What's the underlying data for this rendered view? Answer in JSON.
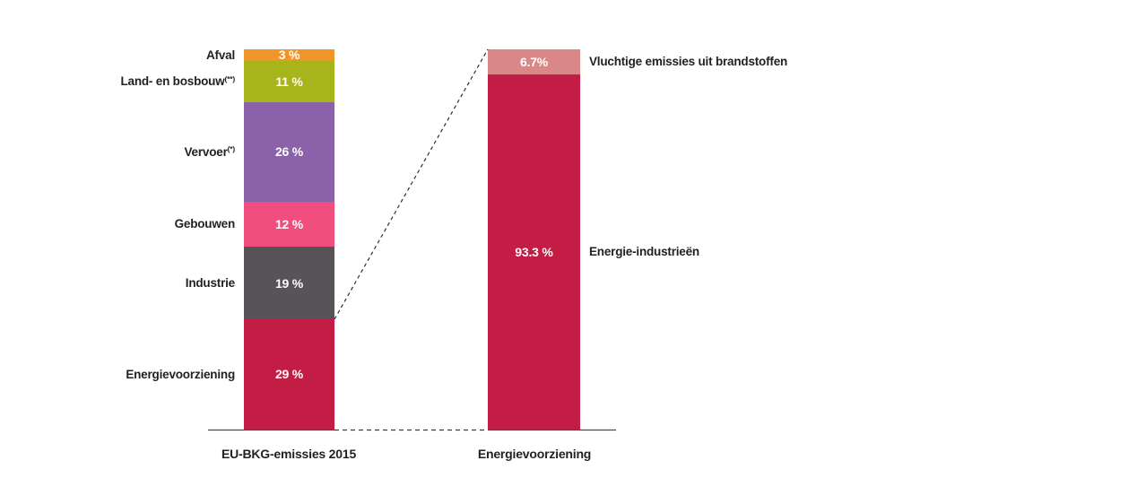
{
  "page": {
    "background": "#ffffff",
    "text_color": "#231f20"
  },
  "chart_data": {
    "type": "bar",
    "subtype": "100%-stacked-vertical-with-breakdown",
    "unit": "%",
    "grid": false,
    "legend_position": "none",
    "connector_note": "dashed line links top of Energievoorziening segment in left bar to top of breakdown bar",
    "axis_line_color": "#4b4b4b",
    "connector_color": "#2e2e2e",
    "bars": [
      {
        "category": "EU-BKG-emissies 2015",
        "segments_top_to_bottom": [
          {
            "label": "Afval",
            "sup": "",
            "value": 3,
            "display": "3 %",
            "color": "#ef9529"
          },
          {
            "label": "Land- en bosbouw",
            "sup": "(**)",
            "value": 11,
            "display": "11 %",
            "color": "#a7b51b"
          },
          {
            "label": "Vervoer",
            "sup": "(*)",
            "value": 26,
            "display": "26 %",
            "color": "#8b62a9"
          },
          {
            "label": "Gebouwen",
            "sup": "",
            "value": 12,
            "display": "12 %",
            "color": "#ef4e7e"
          },
          {
            "label": "Industrie",
            "sup": "",
            "value": 19,
            "display": "19 %",
            "color": "#575359"
          },
          {
            "label": "Energievoorziening",
            "sup": "",
            "value": 29,
            "display": "29 %",
            "color": "#c31d45"
          }
        ]
      },
      {
        "category": "Energievoorziening",
        "segments_top_to_bottom": [
          {
            "label": "Vluchtige emissies uit brandstoffen",
            "sup": "",
            "value": 6.7,
            "display": "6.7%",
            "color": "#d98787"
          },
          {
            "label": "Energie-industrieën",
            "sup": "",
            "value": 93.3,
            "display": "93.3 %",
            "color": "#c31d45"
          }
        ]
      }
    ]
  }
}
